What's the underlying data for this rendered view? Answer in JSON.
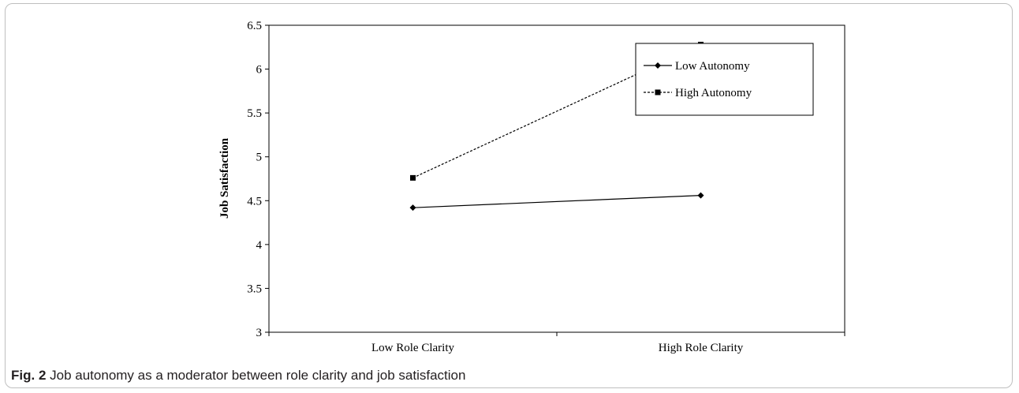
{
  "caption": {
    "label": "Fig. 2",
    "text": "Job autonomy as a moderator between role clarity and job satisfaction"
  },
  "chart_data": {
    "type": "line",
    "categories": [
      "Low Role Clarity",
      "High Role Clarity"
    ],
    "series": [
      {
        "name": "Low Autonomy",
        "values": [
          4.42,
          4.56
        ],
        "marker": "diamond",
        "line_style": "solid",
        "color": "#000000"
      },
      {
        "name": "High Autonomy",
        "values": [
          4.76,
          6.28
        ],
        "marker": "square",
        "line_style": "dashed",
        "color": "#000000"
      }
    ],
    "title": "",
    "xlabel": "",
    "ylabel": "Job Satisfaction",
    "ylim": [
      3,
      6.5
    ],
    "yticks": [
      "3",
      "3.5",
      "4",
      "4.5",
      "5",
      "5.5",
      "6",
      "6.5"
    ],
    "grid": false,
    "legend_position": "right"
  }
}
